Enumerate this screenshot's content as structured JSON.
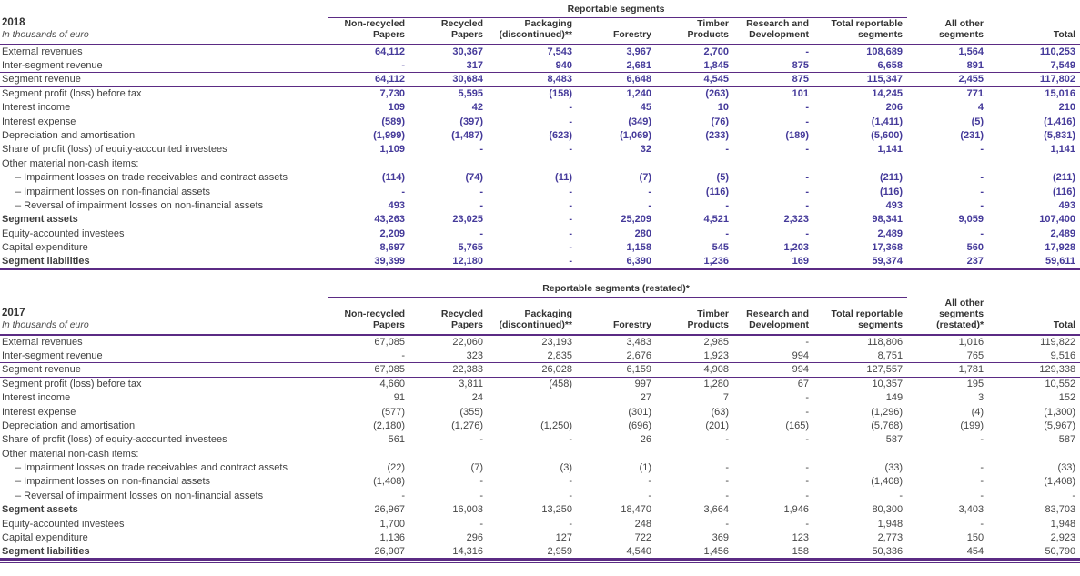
{
  "theme": {
    "rule_purple": "#5b2b84",
    "value_purple": "#453a9a",
    "text_dark": "#3f3f3f",
    "background": "#ffffff"
  },
  "tables": [
    {
      "year": "2018",
      "unit": "In thousands of euro",
      "span_header": "Reportable segments",
      "values_bold": true,
      "double_bottom_rule": false,
      "columns": [
        "Non-recycled\nPapers",
        "Recycled\nPapers",
        "Packaging\n(discontinued)**",
        "Forestry",
        "Timber\nProducts",
        "Research and\nDevelopment",
        "Total reportable\nsegments",
        "All other\nsegments",
        "Total"
      ],
      "rows": [
        {
          "label": "External revenues",
          "values": [
            "64,112",
            "30,367",
            "7,543",
            "3,967",
            "2,700",
            "-",
            "108,689",
            "1,564",
            "110,253"
          ]
        },
        {
          "label": "Inter-segment revenue",
          "values": [
            "-",
            "317",
            "940",
            "2,681",
            "1,845",
            "875",
            "6,658",
            "891",
            "7,549"
          ]
        },
        {
          "label": "Segment revenue",
          "rule_top": true,
          "rule_bottom": true,
          "values": [
            "64,112",
            "30,684",
            "8,483",
            "6,648",
            "4,545",
            "875",
            "115,347",
            "2,455",
            "117,802"
          ]
        },
        {
          "label": "Segment profit (loss) before tax",
          "values": [
            "7,730",
            "5,595",
            "(158)",
            "1,240",
            "(263)",
            "101",
            "14,245",
            "771",
            "15,016"
          ]
        },
        {
          "label": "Interest income",
          "values": [
            "109",
            "42",
            "-",
            "45",
            "10",
            "-",
            "206",
            "4",
            "210"
          ]
        },
        {
          "label": "Interest expense",
          "values": [
            "(589)",
            "(397)",
            "-",
            "(349)",
            "(76)",
            "-",
            "(1,411)",
            "(5)",
            "(1,416)"
          ]
        },
        {
          "label": "Depreciation and amortisation",
          "values": [
            "(1,999)",
            "(1,487)",
            "(623)",
            "(1,069)",
            "(233)",
            "(189)",
            "(5,600)",
            "(231)",
            "(5,831)"
          ]
        },
        {
          "label": "Share of profit (loss) of equity-accounted investees",
          "values": [
            "1,109",
            "-",
            "-",
            "32",
            "-",
            "-",
            "1,141",
            "-",
            "1,141"
          ]
        },
        {
          "label": "Other material non-cash items:",
          "values": [
            "",
            "",
            "",
            "",
            "",
            "",
            "",
            "",
            ""
          ]
        },
        {
          "label": "– Impairment losses on trade receivables and contract assets",
          "indent": true,
          "values": [
            "(114)",
            "(74)",
            "(11)",
            "(7)",
            "(5)",
            "-",
            "(211)",
            "-",
            "(211)"
          ]
        },
        {
          "label": "– Impairment losses on non-financial assets",
          "indent": true,
          "values": [
            "-",
            "-",
            "-",
            "-",
            "(116)",
            "-",
            "(116)",
            "-",
            "(116)"
          ]
        },
        {
          "label": "– Reversal of impairment losses on non-financial assets",
          "indent": true,
          "values": [
            "493",
            "-",
            "-",
            "-",
            "-",
            "-",
            "493",
            "-",
            "493"
          ]
        },
        {
          "label": "Segment assets",
          "bold": true,
          "values": [
            "43,263",
            "23,025",
            "-",
            "25,209",
            "4,521",
            "2,323",
            "98,341",
            "9,059",
            "107,400"
          ]
        },
        {
          "label": "Equity-accounted investees",
          "values": [
            "2,209",
            "-",
            "-",
            "280",
            "-",
            "-",
            "2,489",
            "-",
            "2,489"
          ]
        },
        {
          "label": "Capital expenditure",
          "values": [
            "8,697",
            "5,765",
            "-",
            "1,158",
            "545",
            "1,203",
            "17,368",
            "560",
            "17,928"
          ]
        },
        {
          "label": "Segment liabilities",
          "bold": true,
          "values": [
            "39,399",
            "12,180",
            "-",
            "6,390",
            "1,236",
            "169",
            "59,374",
            "237",
            "59,611"
          ]
        }
      ]
    },
    {
      "year": "2017",
      "unit": "In thousands of euro",
      "span_header": "Reportable segments (restated)*",
      "values_bold": false,
      "double_bottom_rule": true,
      "columns": [
        "Non-recycled\nPapers",
        "Recycled\nPapers",
        "Packaging\n(discontinued)**",
        "Forestry",
        "Timber\nProducts",
        "Research and\nDevelopment",
        "Total reportable\nsegments",
        "All other\nsegments\n(restated)*",
        "Total"
      ],
      "rows": [
        {
          "label": "External revenues",
          "values": [
            "67,085",
            "22,060",
            "23,193",
            "3,483",
            "2,985",
            "-",
            "118,806",
            "1,016",
            "119,822"
          ]
        },
        {
          "label": "Inter-segment revenue",
          "values": [
            "-",
            "323",
            "2,835",
            "2,676",
            "1,923",
            "994",
            "8,751",
            "765",
            "9,516"
          ]
        },
        {
          "label": "Segment revenue",
          "rule_top": true,
          "rule_bottom": true,
          "values": [
            "67,085",
            "22,383",
            "26,028",
            "6,159",
            "4,908",
            "994",
            "127,557",
            "1,781",
            "129,338"
          ]
        },
        {
          "label": "Segment profit (loss) before tax",
          "values": [
            "4,660",
            "3,811",
            "(458)",
            "997",
            "1,280",
            "67",
            "10,357",
            "195",
            "10,552"
          ]
        },
        {
          "label": "Interest income",
          "values": [
            "91",
            "24",
            "",
            "27",
            "7",
            "-",
            "149",
            "3",
            "152"
          ]
        },
        {
          "label": "Interest expense",
          "values": [
            "(577)",
            "(355)",
            "",
            "(301)",
            "(63)",
            "-",
            "(1,296)",
            "(4)",
            "(1,300)"
          ]
        },
        {
          "label": "Depreciation and amortisation",
          "values": [
            "(2,180)",
            "(1,276)",
            "(1,250)",
            "(696)",
            "(201)",
            "(165)",
            "(5,768)",
            "(199)",
            "(5,967)"
          ]
        },
        {
          "label": "Share of profit (loss) of equity-accounted investees",
          "values": [
            "561",
            "-",
            "-",
            "26",
            "-",
            "-",
            "587",
            "-",
            "587"
          ]
        },
        {
          "label": "Other material non-cash items:",
          "values": [
            "",
            "",
            "",
            "",
            "",
            "",
            "",
            "",
            ""
          ]
        },
        {
          "label": "– Impairment losses on trade receivables and contract assets",
          "indent": true,
          "values": [
            "(22)",
            "(7)",
            "(3)",
            "(1)",
            "-",
            "-",
            "(33)",
            "-",
            "(33)"
          ]
        },
        {
          "label": "– Impairment losses on non-financial assets",
          "indent": true,
          "values": [
            "(1,408)",
            "-",
            "-",
            "-",
            "-",
            "-",
            "(1,408)",
            "-",
            "(1,408)"
          ]
        },
        {
          "label": "– Reversal of impairment losses on non-financial assets",
          "indent": true,
          "values": [
            "-",
            "-",
            "-",
            "-",
            "-",
            "-",
            "-",
            "-",
            "-"
          ]
        },
        {
          "label": "Segment assets",
          "bold": true,
          "values": [
            "26,967",
            "16,003",
            "13,250",
            "18,470",
            "3,664",
            "1,946",
            "80,300",
            "3,403",
            "83,703"
          ]
        },
        {
          "label": "Equity-accounted investees",
          "values": [
            "1,700",
            "-",
            "-",
            "248",
            "-",
            "-",
            "1,948",
            "-",
            "1,948"
          ]
        },
        {
          "label": "Capital expenditure",
          "values": [
            "1,136",
            "296",
            "127",
            "722",
            "369",
            "123",
            "2,773",
            "150",
            "2,923"
          ]
        },
        {
          "label": "Segment liabilities",
          "bold": true,
          "values": [
            "26,907",
            "14,316",
            "2,959",
            "4,540",
            "1,456",
            "158",
            "50,336",
            "454",
            "50,790"
          ]
        }
      ]
    }
  ]
}
